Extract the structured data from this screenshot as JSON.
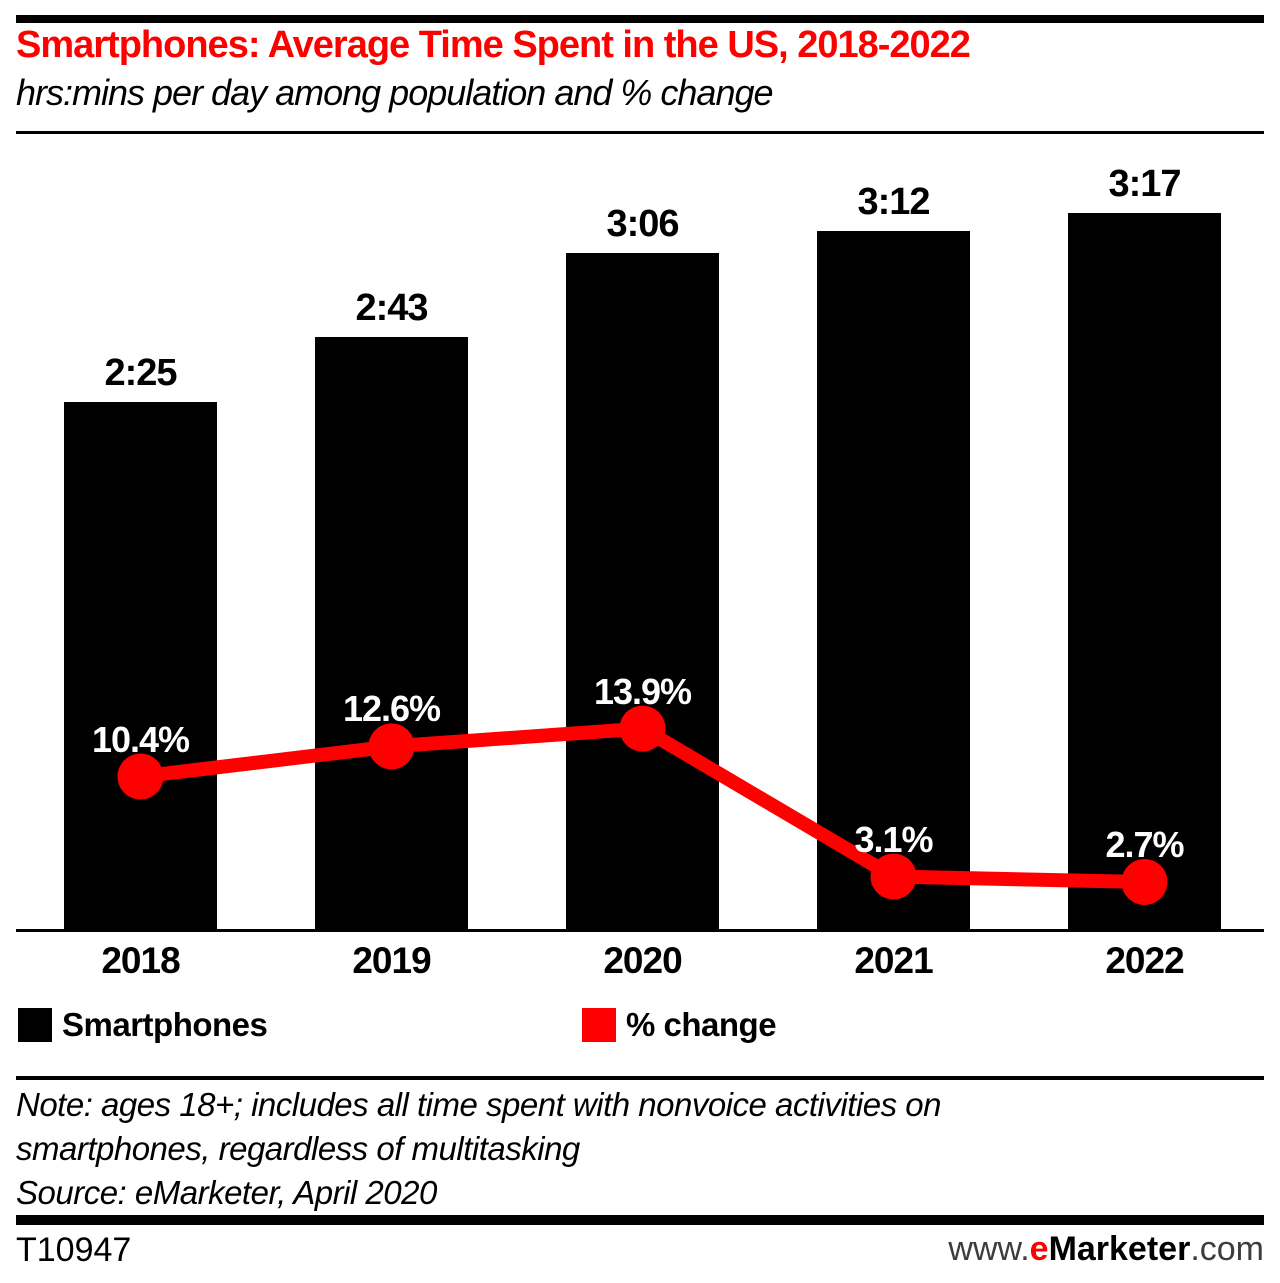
{
  "header": {
    "title": "Smartphones: Average Time Spent in the US, 2018-2022",
    "subtitle": "hrs:mins per day among population and % change"
  },
  "chart_data": {
    "type": "bar",
    "combo": "bar+line",
    "title": "Smartphones: Average Time Spent in the US, 2018-2022",
    "subtitle": "hrs:mins per day among population and % change",
    "categories": [
      "2018",
      "2019",
      "2020",
      "2021",
      "2022"
    ],
    "series": [
      {
        "name": "Smartphones",
        "type": "bar",
        "unit": "hrs:mins per day",
        "labels": [
          "2:25",
          "2:43",
          "3:06",
          "3:12",
          "3:17"
        ],
        "values_minutes": [
          145,
          163,
          186,
          192,
          197
        ],
        "color": "#000000"
      },
      {
        "name": "% change",
        "type": "line",
        "unit": "%",
        "labels": [
          "10.4%",
          "12.6%",
          "13.9%",
          "3.1%",
          "2.7%"
        ],
        "values": [
          10.4,
          12.6,
          13.9,
          3.1,
          2.7
        ],
        "color": "#ff0000"
      }
    ],
    "xlabel": "",
    "ylabel": "",
    "grid": false,
    "legend_position": "bottom",
    "data_labels": true
  },
  "legend": {
    "items": [
      {
        "label": "Smartphones",
        "color": "#000000"
      },
      {
        "label": "% change",
        "color": "#ff0000"
      }
    ]
  },
  "notes": {
    "note_lines": [
      "Note: ages 18+; includes all time spent with nonvoice activities on",
      "smartphones, regardless of multitasking"
    ],
    "source": "Source: eMarketer, April 2020"
  },
  "footer": {
    "chart_id": "T10947",
    "website": {
      "prefix": "www.",
      "brand_e": "e",
      "brand_rest": "Marketer",
      "suffix": ".com"
    }
  },
  "colors": {
    "accent_red": "#ff0000",
    "bar_black": "#000000",
    "background": "#ffffff"
  }
}
